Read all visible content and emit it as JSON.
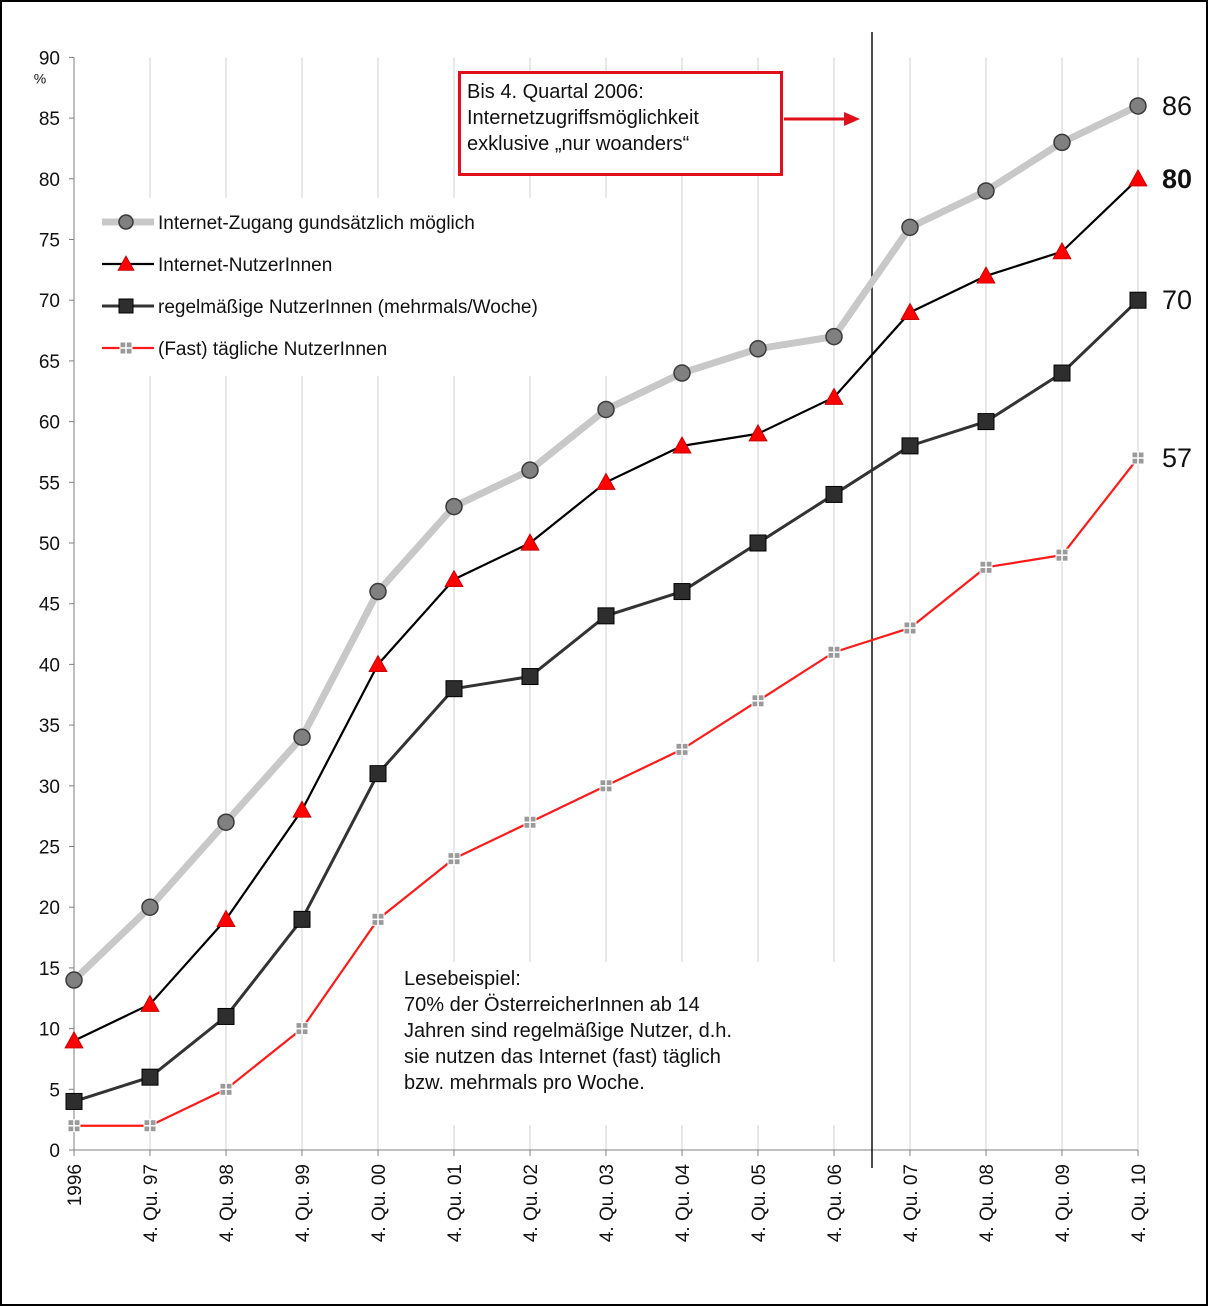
{
  "chart_data": {
    "type": "line",
    "title": "",
    "xlabel": "",
    "ylabel": "%",
    "ylim": [
      0,
      90
    ],
    "yticks": [
      "0",
      "5",
      "10",
      "15",
      "20",
      "25",
      "30",
      "35",
      "40",
      "45",
      "50",
      "55",
      "60",
      "65",
      "70",
      "75",
      "80",
      "85",
      "90"
    ],
    "categories": [
      "1996",
      "4. Qu. 97",
      "4. Qu. 98",
      "4. Qu. 99",
      "4. Qu. 00",
      "4. Qu. 01",
      "4. Qu. 02",
      "4. Qu. 03",
      "4. Qu. 04",
      "4. Qu. 05",
      "4. Qu. 06",
      "4. Qu. 07",
      "4. Qu. 08",
      "4. Qu. 09",
      "4. Qu. 10"
    ],
    "grid": "vertical",
    "legend_position": "upper-left",
    "series": [
      {
        "name": "Internet-Zugang gundsätzlich möglich",
        "values": [
          14,
          20,
          27,
          34,
          46,
          53,
          56,
          61,
          64,
          66,
          67,
          76,
          79,
          83,
          86
        ],
        "color": "#c8c8c8",
        "marker": "circle",
        "end_label": "86"
      },
      {
        "name": "Internet-NutzerInnen",
        "values": [
          9,
          12,
          19,
          28,
          40,
          47,
          50,
          55,
          58,
          59,
          62,
          69,
          72,
          74,
          80
        ],
        "color": "#000000",
        "marker": "triangle",
        "end_label": "80"
      },
      {
        "name": "regelmäßige NutzerInnen (mehrmals/Woche)",
        "values": [
          4,
          6,
          11,
          19,
          31,
          38,
          39,
          44,
          46,
          50,
          54,
          58,
          60,
          64,
          70
        ],
        "color": "#333333",
        "marker": "square",
        "end_label": "70"
      },
      {
        "name": "(Fast) tägliche NutzerInnen",
        "values": [
          2,
          2,
          5,
          10,
          19,
          24,
          27,
          30,
          33,
          37,
          41,
          43,
          48,
          49,
          57
        ],
        "color": "#ff1a1a",
        "marker": "small-square",
        "end_label": "57"
      }
    ],
    "annotations": {
      "top_note": [
        "Bis 4. Quartal 2006:",
        "Internetzugriffsmöglichkeit",
        "exklusive „nur woanders“"
      ],
      "bottom_note": [
        "Lesebeispiel:",
        "70% der ÖsterreicherInnen  ab 14",
        "Jahren sind regelmäßige Nutzer,  d.h.",
        "sie nutzen das Internet  (fast) täglich",
        "bzw. mehrmals  pro Woche."
      ]
    }
  }
}
